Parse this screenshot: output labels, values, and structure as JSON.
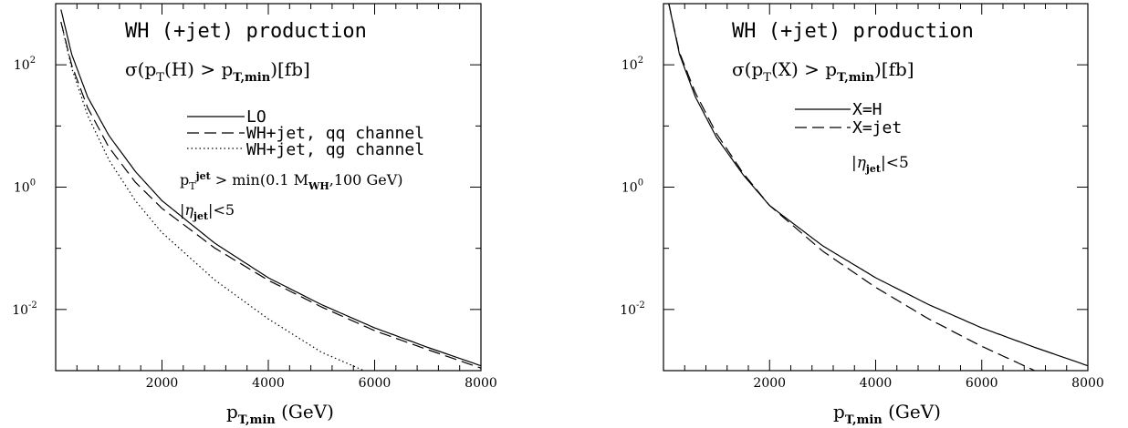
{
  "chart_data": [
    {
      "type": "line",
      "title": "WH (+jet) production",
      "subtitle": "σ(p_T(H) > p_T,min)[fb]",
      "xlabel": "p_T,min (GeV)",
      "ylabel": "",
      "xlim": [
        0,
        8000
      ],
      "ylim": [
        0.001,
        1000
      ],
      "yscale": "log",
      "xticks": [
        2000,
        4000,
        6000,
        8000
      ],
      "xtick_labels": [
        "2000",
        "4000",
        "6000",
        "8000"
      ],
      "yticks": [
        100,
        1,
        0.01
      ],
      "ytick_labels": [
        "10^2",
        "10^0",
        "10^-2"
      ],
      "legend_position": "top-right",
      "annotations": [
        "p_T^jet > min(0.1 M_WH,100 GeV)",
        "|η_jet|<5"
      ],
      "series": [
        {
          "name": "LO",
          "style": "solid",
          "x": [
            100,
            300,
            600,
            1000,
            1500,
            2000,
            3000,
            4000,
            5000,
            6000,
            7000,
            8000
          ],
          "values": [
            800,
            150,
            30,
            7,
            1.8,
            0.6,
            0.12,
            0.033,
            0.012,
            0.005,
            0.0024,
            0.0012
          ]
        },
        {
          "name": "WH+jet, qq channel",
          "style": "dashed",
          "x": [
            100,
            300,
            600,
            1000,
            1500,
            2000,
            3000,
            4000,
            5000,
            6000,
            7000,
            8000
          ],
          "values": [
            500,
            100,
            20,
            4.5,
            1.2,
            0.45,
            0.1,
            0.03,
            0.011,
            0.0045,
            0.0022,
            0.0011
          ]
        },
        {
          "name": "WH+jet, qg channel",
          "style": "dotted",
          "x": [
            100,
            300,
            600,
            1000,
            1500,
            2000,
            3000,
            4000,
            5000,
            5800
          ],
          "values": [
            500,
            90,
            15,
            2.8,
            0.6,
            0.18,
            0.03,
            0.007,
            0.002,
            0.001
          ]
        }
      ]
    },
    {
      "type": "line",
      "title": "WH (+jet) production",
      "subtitle": "σ(p_T(X) > p_T,min)[fb]",
      "xlabel": "p_T,min (GeV)",
      "ylabel": "",
      "xlim": [
        0,
        8000
      ],
      "ylim": [
        0.001,
        1000
      ],
      "yscale": "log",
      "xticks": [
        2000,
        4000,
        6000,
        8000
      ],
      "xtick_labels": [
        "2000",
        "4000",
        "6000",
        "8000"
      ],
      "yticks": [
        100,
        1,
        0.01
      ],
      "ytick_labels": [
        "10^2",
        "10^0",
        "10^-2"
      ],
      "legend_position": "top-right",
      "annotations": [
        "|η_jet|<5"
      ],
      "series": [
        {
          "name": "X=H",
          "style": "solid",
          "x": [
            100,
            300,
            600,
            1000,
            1500,
            2000,
            3000,
            4000,
            5000,
            6000,
            7000,
            8000
          ],
          "values": [
            1000,
            150,
            30,
            6.5,
            1.6,
            0.5,
            0.11,
            0.033,
            0.012,
            0.005,
            0.0024,
            0.0012
          ]
        },
        {
          "name": "X=jet",
          "style": "dashed",
          "x": [
            100,
            300,
            600,
            1000,
            1500,
            2000,
            3000,
            4000,
            5000,
            6000,
            7000
          ],
          "values": [
            1000,
            160,
            35,
            7.5,
            1.7,
            0.5,
            0.09,
            0.023,
            0.007,
            0.0025,
            0.001
          ]
        }
      ]
    }
  ]
}
